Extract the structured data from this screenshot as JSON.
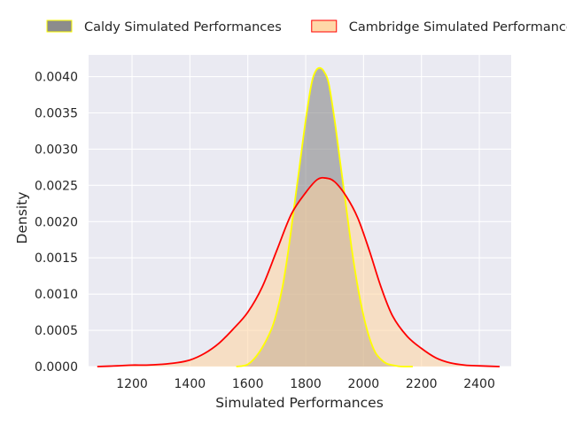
{
  "chart_data": {
    "type": "area",
    "title": "",
    "xlabel": "Simulated Performances",
    "ylabel": "Density",
    "xlim": [
      1050,
      2510
    ],
    "ylim": [
      0,
      0.0043
    ],
    "x_ticks": [
      1200,
      1400,
      1600,
      1800,
      2000,
      2200,
      2400
    ],
    "y_ticks": [
      0,
      0.0005,
      0.001,
      0.0015,
      0.002,
      0.0025,
      0.003,
      0.0035,
      0.004
    ],
    "y_tick_labels": [
      "0.0000",
      "0.0005",
      "0.0010",
      "0.0015",
      "0.0020",
      "0.0025",
      "0.0030",
      "0.0035",
      "0.0040"
    ],
    "grid": true,
    "legend_position": "top",
    "background": "#eaeaf2",
    "series": [
      {
        "name": "Caldy Simulated Performances",
        "fill": "#808080",
        "line": "#ffff00",
        "x": [
          1560,
          1600,
          1640,
          1680,
          1700,
          1720,
          1740,
          1760,
          1780,
          1800,
          1820,
          1835,
          1850,
          1865,
          1880,
          1900,
          1920,
          1940,
          1960,
          1980,
          2000,
          2020,
          2040,
          2060,
          2080,
          2100,
          2120,
          2140,
          2170
        ],
        "y": [
          0.0,
          3e-05,
          0.0002,
          0.0005,
          0.00075,
          0.0011,
          0.0016,
          0.0022,
          0.0028,
          0.0034,
          0.0039,
          0.00408,
          0.00412,
          0.00406,
          0.0039,
          0.0034,
          0.0028,
          0.0022,
          0.0016,
          0.0011,
          0.0007,
          0.0004,
          0.0002,
          0.0001,
          4e-05,
          2e-05,
          5e-06,
          0.0,
          0.0
        ]
      },
      {
        "name": "Cambridge Simulated Performances",
        "fill": "#ffd49e",
        "line": "#ff0000",
        "x": [
          1080,
          1150,
          1200,
          1250,
          1300,
          1350,
          1400,
          1450,
          1500,
          1550,
          1600,
          1650,
          1700,
          1750,
          1800,
          1840,
          1870,
          1900,
          1940,
          1980,
          2020,
          2060,
          2100,
          2150,
          2200,
          2250,
          2300,
          2350,
          2400,
          2470
        ],
        "y": [
          0.0,
          1e-05,
          2e-05,
          2e-05,
          3e-05,
          5e-05,
          9e-05,
          0.00018,
          0.00032,
          0.00052,
          0.00075,
          0.0011,
          0.0016,
          0.0021,
          0.0024,
          0.00258,
          0.0026,
          0.00255,
          0.00235,
          0.00205,
          0.0016,
          0.0011,
          0.0007,
          0.00042,
          0.00025,
          0.00012,
          5e-05,
          2e-05,
          1e-05,
          0.0
        ]
      }
    ]
  }
}
